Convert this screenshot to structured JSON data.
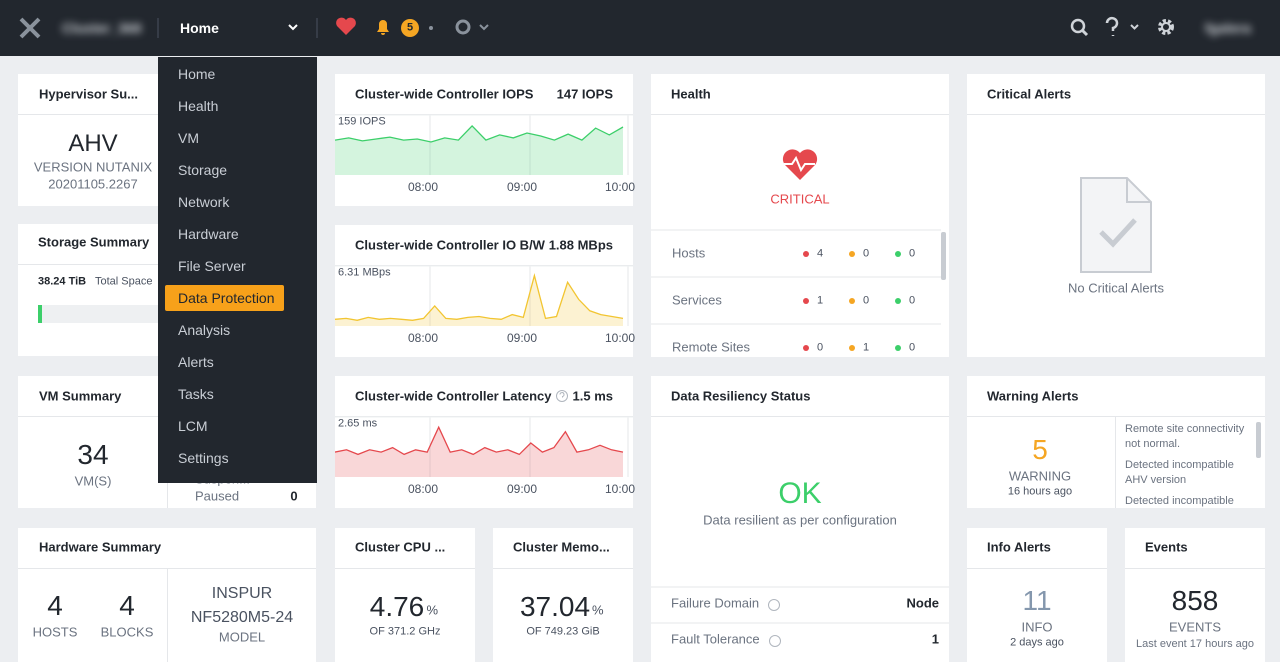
{
  "topbar": {
    "cluster": "Cluster_368",
    "menu": "Home",
    "alerts_count": "5",
    "user": "fgalera"
  },
  "menu": {
    "items": [
      "Home",
      "Health",
      "VM",
      "Storage",
      "Network",
      "Hardware",
      "File Server",
      "Data Protection",
      "Analysis",
      "Alerts",
      "Tasks",
      "LCM",
      "Settings"
    ],
    "selected": 7
  },
  "hypervisor": {
    "title": "Hypervisor Su...",
    "name": "AHV",
    "version": "VERSION NUTANIX",
    "build": "20201105.2267"
  },
  "storage": {
    "title": "Storage Summary",
    "capacity": "38.24 TiB",
    "capacity_label": "Total Space"
  },
  "vm": {
    "title": "VM Summary",
    "count": "34",
    "count_label": "VM(S)",
    "states": [
      {
        "label": "Suspen..."
      },
      {
        "label": "Paused",
        "count": "0"
      }
    ]
  },
  "hardware": {
    "title": "Hardware Summary",
    "hosts": "4",
    "hosts_label": "HOSTS",
    "blocks": "4",
    "blocks_label": "BLOCKS",
    "model_lines": [
      "INSPUR",
      "NF5280M5-24"
    ],
    "model_label": "MODEL"
  },
  "charts": [
    {
      "title": "Cluster-wide Controller IOPS",
      "current": "147 IOPS",
      "max_label": "159 IOPS",
      "x_labels": [
        "08:00",
        "09:00",
        "10:00"
      ],
      "color": "#3ccf6a",
      "ylim": [
        0,
        160
      ],
      "values": [
        93,
        99,
        91,
        96,
        101,
        93,
        96,
        88,
        99,
        93,
        131,
        93,
        107,
        99,
        112,
        104,
        93,
        109,
        93,
        125,
        107,
        128
      ]
    },
    {
      "title": "Cluster-wide Controller IO B/W",
      "current": "1.88 MBps",
      "max_label": "6.31 MBps",
      "x_labels": [
        "08:00",
        "09:00",
        "10:00"
      ],
      "color": "#f2c531",
      "ylim": [
        0,
        6.31
      ],
      "values": [
        0.7,
        0.8,
        0.6,
        0.9,
        0.7,
        0.8,
        0.7,
        0.6,
        0.8,
        2.1,
        0.8,
        0.7,
        0.9,
        1.0,
        0.8,
        0.7,
        1.2,
        0.9,
        5.3,
        0.8,
        1.0,
        4.6,
        2.8,
        1.6,
        1.2,
        1.0,
        0.8
      ]
    },
    {
      "title": "Cluster-wide Controller Latency",
      "current": "1.5 ms",
      "max_label": "2.65 ms",
      "x_labels": [
        "08:00",
        "09:00",
        "10:00"
      ],
      "color": "#e5484d",
      "ylim": [
        0,
        2.65
      ],
      "values": [
        1.1,
        1.2,
        1.0,
        1.2,
        1.1,
        1.3,
        1.0,
        1.2,
        1.1,
        2.2,
        1.1,
        1.2,
        1.0,
        1.3,
        1.1,
        1.2,
        1.0,
        1.5,
        1.1,
        1.3,
        2.0,
        1.1,
        1.2,
        1.4,
        1.2,
        1.1
      ]
    }
  ],
  "cpu": {
    "title": "Cluster CPU ...",
    "value": "4.76",
    "unit": "%",
    "sub": "OF 371.2 GHz"
  },
  "memory": {
    "title": "Cluster Memo...",
    "value": "37.04",
    "unit": "%",
    "sub": "OF 749.23 GiB"
  },
  "health": {
    "title": "Health",
    "status": "CRITICAL",
    "rows": [
      {
        "label": "Hosts",
        "critical": 4,
        "warning": 0,
        "ok": 0
      },
      {
        "label": "Services",
        "critical": 1,
        "warning": 0,
        "ok": 0
      },
      {
        "label": "Remote Sites",
        "critical": 0,
        "warning": 1,
        "ok": 0
      }
    ]
  },
  "resiliency": {
    "title": "Data Resiliency Status",
    "status": "OK",
    "description": "Data resilient as per configuration",
    "rows": [
      {
        "label": "Failure Domain",
        "value": "Node"
      },
      {
        "label": "Fault Tolerance",
        "value": "1"
      }
    ]
  },
  "critical_alerts": {
    "title": "Critical Alerts",
    "empty": "No Critical Alerts"
  },
  "warning_alerts": {
    "title": "Warning Alerts",
    "count": "5",
    "label": "WARNING",
    "time": "16 hours ago",
    "items": [
      "Remote site connectivity not normal.",
      "Detected incompatible AHV version",
      "Detected incompatible AHV version"
    ]
  },
  "info_alerts": {
    "title": "Info Alerts",
    "count": "11",
    "label": "INFO",
    "time": "2 days ago"
  },
  "events": {
    "title": "Events",
    "count": "858",
    "label": "EVENTS",
    "time": "Last event 17 hours ago"
  }
}
